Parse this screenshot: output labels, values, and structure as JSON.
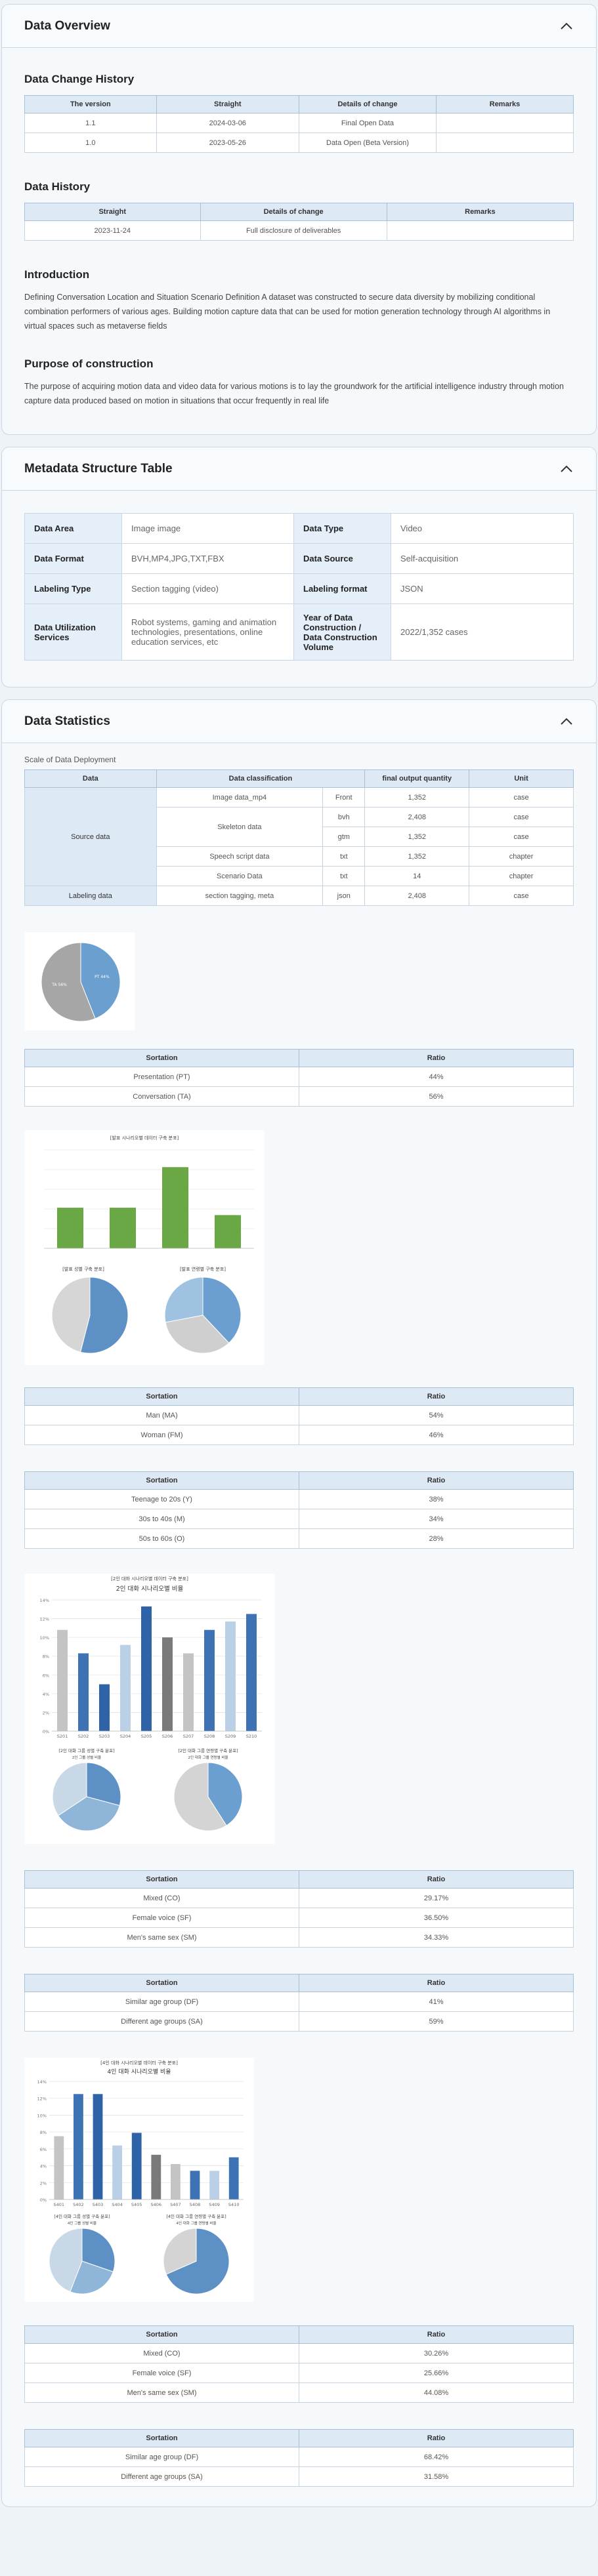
{
  "overview": {
    "title": "Data Overview",
    "change_history": {
      "title": "Data Change History",
      "headers": [
        "The version",
        "Straight",
        "Details of change",
        "Remarks"
      ],
      "rows": [
        [
          "1.1",
          "2024-03-06",
          "Final Open Data",
          ""
        ],
        [
          "1.0",
          "2023-05-26",
          "Data Open (Beta Version)",
          ""
        ]
      ]
    },
    "history": {
      "title": "Data History",
      "headers": [
        "Straight",
        "Details of change",
        "Remarks"
      ],
      "rows": [
        [
          "2023-11-24",
          "Full disclosure of deliverables",
          ""
        ]
      ]
    },
    "intro": {
      "title": "Introduction",
      "text": "Defining Conversation Location and Situation Scenario Definition A dataset was constructed to secure data diversity by mobilizing conditional combination performers of various ages. Building motion capture data that can be used for motion generation technology through AI algorithms in virtual spaces such as metaverse fields"
    },
    "purpose": {
      "title": "Purpose of construction",
      "text": "The purpose of acquiring motion data and video data for various motions is to lay the groundwork for the artificial intelligence industry through motion capture data produced based on motion in situations that occur frequently in real life"
    }
  },
  "metadata": {
    "title": "Metadata Structure Table",
    "rows": [
      {
        "k1": "Data Area",
        "v1": "Image image",
        "k2": "Data Type",
        "v2": "Video"
      },
      {
        "k1": "Data Format",
        "v1": "BVH,MP4,JPG,TXT,FBX",
        "k2": "Data Source",
        "v2": "Self-acquisition"
      },
      {
        "k1": "Labeling Type",
        "v1": "Section tagging (video)",
        "k2": "Labeling format",
        "v2": "JSON"
      },
      {
        "k1": "Data Utilization Services",
        "v1": "Robot systems, gaming and animation technologies, presentations, online education services, etc",
        "k2": "Year of Data Construction / Data Construction Volume",
        "v2": "2022/1,352 cases"
      }
    ]
  },
  "stats": {
    "title": "Data Statistics",
    "caption": "Scale of Data Deployment",
    "scale_headers": [
      "Data",
      "Data classification",
      "final output quantity",
      "Unit"
    ],
    "source_label": "Source data",
    "labeling_label": "Labeling data",
    "scale": {
      "image": {
        "name": "Image data_mp4",
        "sub": "Front",
        "qty": "1,352",
        "unit": "case"
      },
      "skel1": {
        "name": "Skeleton data",
        "sub": "bvh",
        "qty": "2,408",
        "unit": "case"
      },
      "skel2": {
        "sub": "gtm",
        "qty": "1,352",
        "unit": "case"
      },
      "script": {
        "name": "Speech script data",
        "sub": "txt",
        "qty": "1,352",
        "unit": "chapter"
      },
      "scenario": {
        "name": "Scenario Data",
        "sub": "txt",
        "qty": "14",
        "unit": "chapter"
      },
      "label": {
        "name": "section tagging, meta",
        "sub": "json",
        "qty": "2,408",
        "unit": "case"
      }
    },
    "pie1_labels": [
      "PT",
      "44%",
      "TA",
      "56%"
    ],
    "ratio_headers": [
      "Sortation",
      "Ratio"
    ],
    "t1": [
      [
        "Presentation (PT)",
        "44%"
      ],
      [
        "Conversation (TA)",
        "56%"
      ]
    ],
    "chart2_title": "[발표 시나리오별 데이터 구축 분포]",
    "chart2_pie_left_title": "[발표 성별 구축 분포]",
    "chart2_pie_right_title": "[발표 연령별 구축 분포]",
    "t2": [
      [
        "Man (MA)",
        "54%"
      ],
      [
        "Woman (FM)",
        "46%"
      ]
    ],
    "t3": [
      [
        "Teenage to 20s (Y)",
        "38%"
      ],
      [
        "30s to 40s (M)",
        "34%"
      ],
      [
        "50s to 60s (O)",
        "28%"
      ]
    ],
    "chart3_caption": "[2인 대화 시나리오별 데이터 구축 분포]",
    "chart3_title": "2인 대화 시나리오별 비율",
    "chart3_pie_left_title": "[2인 대화 그룹 성별 구축 분포]",
    "chart3_pie_right_title": "[2인 대화 그룹 연령별 구축 분포]",
    "chart3_pie_left_sub": "2인 그룹 성별 비율",
    "chart3_pie_right_sub": "2인 대화 그룹 연령별 비율",
    "t4": [
      [
        "Mixed (CO)",
        "29.17%"
      ],
      [
        "Female voice (SF)",
        "36.50%"
      ],
      [
        "Men's same sex (SM)",
        "34.33%"
      ]
    ],
    "t5": [
      [
        "Similar age group (DF)",
        "41%"
      ],
      [
        "Different age groups (SA)",
        "59%"
      ]
    ],
    "chart4_caption": "[4인 대화 시나리오별 데이터 구축 분포]",
    "chart4_title": "4인 대화 시나리오별 비율",
    "chart4_pie_left_title": "[4인 대화 그룹 성별 구축 분포]",
    "chart4_pie_right_title": "[4인 대화 그룹 연령별 구축 분포]",
    "chart4_pie_left_sub": "4인 그룹 성별 비율",
    "chart4_pie_right_sub": "4인 대화 그룹 연령별 비율",
    "t6": [
      [
        "Mixed (CO)",
        "30.26%"
      ],
      [
        "Female voice (SF)",
        "25.66%"
      ],
      [
        "Men's same sex (SM)",
        "44.08%"
      ]
    ],
    "t7": [
      [
        "Similar age group (DF)",
        "68.42%"
      ],
      [
        "Different age groups (SA)",
        "31.58%"
      ]
    ]
  },
  "colors": {
    "accent": "#6a9fcf",
    "bar_green": "#6aa845",
    "grey": "#a6a6a6"
  },
  "chart_data": [
    {
      "type": "pie",
      "categories": [
        "PT",
        "TA"
      ],
      "values": [
        44,
        56
      ]
    },
    {
      "type": "bar",
      "title": "[발표 시나리오별 데이터 구축 분포]",
      "categories": [
        "",
        "",
        "",
        ""
      ],
      "values": [
        33,
        33,
        66,
        27
      ]
    },
    {
      "type": "pie",
      "title": "[발표 성별 구축 분포]",
      "categories": [
        "MA",
        "FM"
      ],
      "values": [
        54,
        46
      ]
    },
    {
      "type": "pie",
      "title": "[발표 연령별 구축 분포]",
      "categories": [
        "Y",
        "M",
        "O"
      ],
      "values": [
        38,
        34,
        28
      ]
    },
    {
      "type": "bar",
      "title": "2인 대화 시나리오별 비율",
      "categories": [
        "S201",
        "S202",
        "S203",
        "S204",
        "S205",
        "S206",
        "S207",
        "S208",
        "S209",
        "S210"
      ],
      "values": [
        10.8,
        8.3,
        5,
        9.2,
        13.3,
        10,
        8.3,
        10.8,
        11.7,
        12.5
      ],
      "ylim": [
        0,
        14
      ]
    },
    {
      "type": "pie",
      "title": "[2인 대화 그룹 성별 구축 분포]",
      "categories": [
        "CO",
        "SF",
        "SM"
      ],
      "values": [
        29.17,
        36.5,
        34.33
      ]
    },
    {
      "type": "pie",
      "title": "[2인 대화 그룹 연령별 구축 분포]",
      "categories": [
        "DF",
        "SA"
      ],
      "values": [
        41,
        59
      ]
    },
    {
      "type": "bar",
      "title": "4인 대화 시나리오별 비율",
      "categories": [
        "S401",
        "S402",
        "S403",
        "S404",
        "S405",
        "S406",
        "S407",
        "S408",
        "S409",
        "S410"
      ],
      "values": [
        7.5,
        12.5,
        12.5,
        6.4,
        7.9,
        5.3,
        4.2,
        3.4,
        3.4,
        5
      ],
      "ylim": [
        0,
        14
      ]
    },
    {
      "type": "pie",
      "title": "[4인 대화 그룹 성별 구축 분포]",
      "categories": [
        "CO",
        "SF",
        "SM"
      ],
      "values": [
        30.26,
        25.66,
        44.08
      ]
    },
    {
      "type": "pie",
      "title": "[4인 대화 그룹 연령별 구축 분포]",
      "categories": [
        "DF",
        "SA"
      ],
      "values": [
        68.42,
        31.58
      ]
    }
  ]
}
